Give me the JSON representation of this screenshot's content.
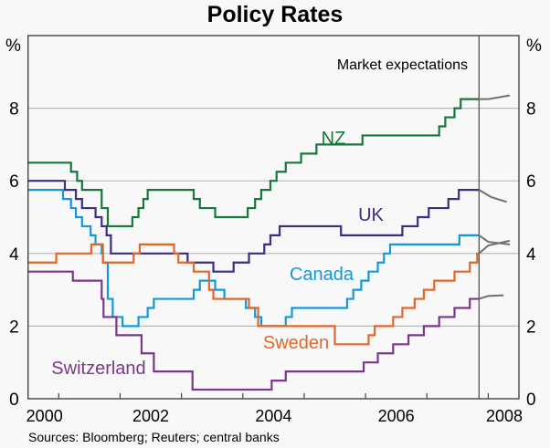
{
  "chart_data": {
    "type": "line",
    "step": true,
    "title": "Policy Rates",
    "ylabel_left": "%",
    "ylabel_right": "%",
    "source": "Sources: Bloomberg; Reuters; central banks",
    "annotation": "Market expectations",
    "xlim": [
      2000.5,
      2008.5
    ],
    "ylim": [
      0,
      10
    ],
    "yticks": [
      0,
      2,
      4,
      6,
      8
    ],
    "xtick_labels": [
      "2000",
      "2002",
      "2004",
      "2006",
      "2008"
    ],
    "grid": true,
    "current_date_line": 2007.85,
    "expectations_color": "#707070",
    "series": [
      {
        "name": "NZ",
        "color": "#16773a",
        "steps": [
          [
            2000.5,
            6.5
          ],
          [
            2001.2,
            6.25
          ],
          [
            2001.3,
            6.0
          ],
          [
            2001.38,
            5.75
          ],
          [
            2001.7,
            5.25
          ],
          [
            2001.8,
            4.75
          ],
          [
            2002.2,
            5.0
          ],
          [
            2002.3,
            5.25
          ],
          [
            2002.38,
            5.5
          ],
          [
            2002.45,
            5.75
          ],
          [
            2003.2,
            5.5
          ],
          [
            2003.3,
            5.25
          ],
          [
            2003.55,
            5.0
          ],
          [
            2004.08,
            5.25
          ],
          [
            2004.2,
            5.5
          ],
          [
            2004.3,
            5.75
          ],
          [
            2004.45,
            6.0
          ],
          [
            2004.55,
            6.25
          ],
          [
            2004.7,
            6.5
          ],
          [
            2004.95,
            6.75
          ],
          [
            2005.2,
            7.0
          ],
          [
            2005.95,
            7.25
          ],
          [
            2007.2,
            7.5
          ],
          [
            2007.3,
            7.75
          ],
          [
            2007.45,
            8.0
          ],
          [
            2007.55,
            8.25
          ]
        ],
        "expectations": [
          [
            2007.85,
            8.25
          ],
          [
            2008.0,
            8.25
          ],
          [
            2008.35,
            8.35
          ]
        ]
      },
      {
        "name": "UK",
        "color": "#3a2e80",
        "steps": [
          [
            2000.5,
            6.0
          ],
          [
            2001.1,
            5.75
          ],
          [
            2001.28,
            5.5
          ],
          [
            2001.38,
            5.25
          ],
          [
            2001.6,
            5.0
          ],
          [
            2001.7,
            4.75
          ],
          [
            2001.78,
            4.5
          ],
          [
            2001.85,
            4.0
          ],
          [
            2003.1,
            3.75
          ],
          [
            2003.52,
            3.5
          ],
          [
            2003.85,
            3.75
          ],
          [
            2004.1,
            4.0
          ],
          [
            2004.35,
            4.25
          ],
          [
            2004.45,
            4.5
          ],
          [
            2004.6,
            4.75
          ],
          [
            2005.6,
            4.5
          ],
          [
            2006.6,
            4.75
          ],
          [
            2006.85,
            5.0
          ],
          [
            2007.03,
            5.25
          ],
          [
            2007.35,
            5.5
          ],
          [
            2007.52,
            5.75
          ]
        ],
        "expectations": [
          [
            2007.85,
            5.75
          ],
          [
            2008.05,
            5.55
          ],
          [
            2008.3,
            5.42
          ]
        ]
      },
      {
        "name": "Canada",
        "color": "#1597d8",
        "steps": [
          [
            2000.5,
            5.75
          ],
          [
            2001.07,
            5.5
          ],
          [
            2001.2,
            5.25
          ],
          [
            2001.28,
            5.0
          ],
          [
            2001.38,
            4.75
          ],
          [
            2001.52,
            4.5
          ],
          [
            2001.6,
            4.25
          ],
          [
            2001.7,
            4.0
          ],
          [
            2001.72,
            3.75
          ],
          [
            2001.8,
            2.75
          ],
          [
            2001.88,
            2.25
          ],
          [
            2002.04,
            2.0
          ],
          [
            2002.3,
            2.25
          ],
          [
            2002.45,
            2.5
          ],
          [
            2002.55,
            2.75
          ],
          [
            2003.2,
            3.0
          ],
          [
            2003.3,
            3.25
          ],
          [
            2003.55,
            3.0
          ],
          [
            2003.7,
            2.75
          ],
          [
            2004.05,
            2.5
          ],
          [
            2004.2,
            2.25
          ],
          [
            2004.3,
            2.0
          ],
          [
            2004.7,
            2.25
          ],
          [
            2004.8,
            2.5
          ],
          [
            2005.7,
            2.75
          ],
          [
            2005.8,
            3.0
          ],
          [
            2005.93,
            3.25
          ],
          [
            2006.05,
            3.5
          ],
          [
            2006.2,
            3.75
          ],
          [
            2006.3,
            4.0
          ],
          [
            2006.4,
            4.25
          ],
          [
            2007.53,
            4.5
          ]
        ],
        "expectations": [
          [
            2007.85,
            4.5
          ],
          [
            2008.0,
            4.32
          ],
          [
            2008.35,
            4.25
          ]
        ]
      },
      {
        "name": "Sweden",
        "color": "#e0672a",
        "steps": [
          [
            2000.5,
            3.75
          ],
          [
            2000.96,
            4.0
          ],
          [
            2001.53,
            4.25
          ],
          [
            2001.72,
            3.75
          ],
          [
            2002.22,
            4.0
          ],
          [
            2002.32,
            4.25
          ],
          [
            2002.88,
            4.0
          ],
          [
            2002.95,
            3.75
          ],
          [
            2003.2,
            3.5
          ],
          [
            2003.45,
            3.0
          ],
          [
            2003.52,
            2.75
          ],
          [
            2004.1,
            2.5
          ],
          [
            2004.25,
            2.0
          ],
          [
            2005.5,
            1.5
          ],
          [
            2006.05,
            1.75
          ],
          [
            2006.15,
            2.0
          ],
          [
            2006.45,
            2.25
          ],
          [
            2006.6,
            2.5
          ],
          [
            2006.8,
            2.75
          ],
          [
            2006.95,
            3.0
          ],
          [
            2007.12,
            3.25
          ],
          [
            2007.45,
            3.5
          ],
          [
            2007.7,
            3.75
          ],
          [
            2007.82,
            4.0
          ]
        ],
        "expectations": [
          [
            2007.85,
            4.0
          ],
          [
            2008.0,
            4.22
          ],
          [
            2008.35,
            4.35
          ]
        ]
      },
      {
        "name": "Switzerland",
        "color": "#7a3889",
        "steps": [
          [
            2000.5,
            3.5
          ],
          [
            2001.23,
            3.25
          ],
          [
            2001.7,
            2.75
          ],
          [
            2001.73,
            2.25
          ],
          [
            2001.94,
            1.75
          ],
          [
            2002.35,
            1.25
          ],
          [
            2002.55,
            0.75
          ],
          [
            2003.18,
            0.25
          ],
          [
            2004.47,
            0.5
          ],
          [
            2004.7,
            0.75
          ],
          [
            2005.97,
            1.0
          ],
          [
            2006.2,
            1.25
          ],
          [
            2006.45,
            1.5
          ],
          [
            2006.7,
            1.75
          ],
          [
            2006.95,
            2.0
          ],
          [
            2007.2,
            2.25
          ],
          [
            2007.45,
            2.5
          ],
          [
            2007.7,
            2.75
          ]
        ],
        "expectations": [
          [
            2007.85,
            2.75
          ],
          [
            2008.0,
            2.83
          ],
          [
            2008.25,
            2.85
          ]
        ]
      }
    ]
  }
}
